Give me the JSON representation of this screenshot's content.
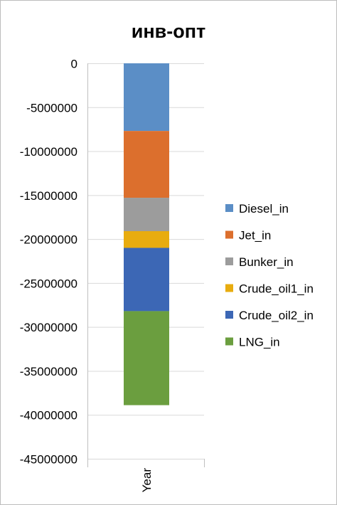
{
  "chart_data": {
    "type": "bar",
    "stacked": true,
    "orientation": "vertical",
    "title": "инв-опт",
    "categories": [
      "Year"
    ],
    "ylim": [
      -45000000,
      0
    ],
    "ytick_step": 5000000,
    "yticks": [
      "0",
      "-5000000",
      "-10000000",
      "-15000000",
      "-20000000",
      "-25000000",
      "-30000000",
      "-35000000",
      "-40000000",
      "-45000000"
    ],
    "grid": true,
    "legend_position": "right",
    "series": [
      {
        "name": "Diesel_in",
        "color": "#5b8ec6",
        "values": [
          -7700000
        ]
      },
      {
        "name": "Jet_in",
        "color": "#dc6f2d",
        "values": [
          -7600000
        ]
      },
      {
        "name": "Bunker_in",
        "color": "#9c9c9c",
        "values": [
          -3800000
        ]
      },
      {
        "name": "Crude_oil1_in",
        "color": "#e8ac0f",
        "values": [
          -1900000
        ]
      },
      {
        "name": "Crude_oil2_in",
        "color": "#3c67b5",
        "values": [
          -7200000
        ]
      },
      {
        "name": "LNG_in",
        "color": "#6b9e3f",
        "values": [
          -10700000
        ]
      }
    ]
  }
}
